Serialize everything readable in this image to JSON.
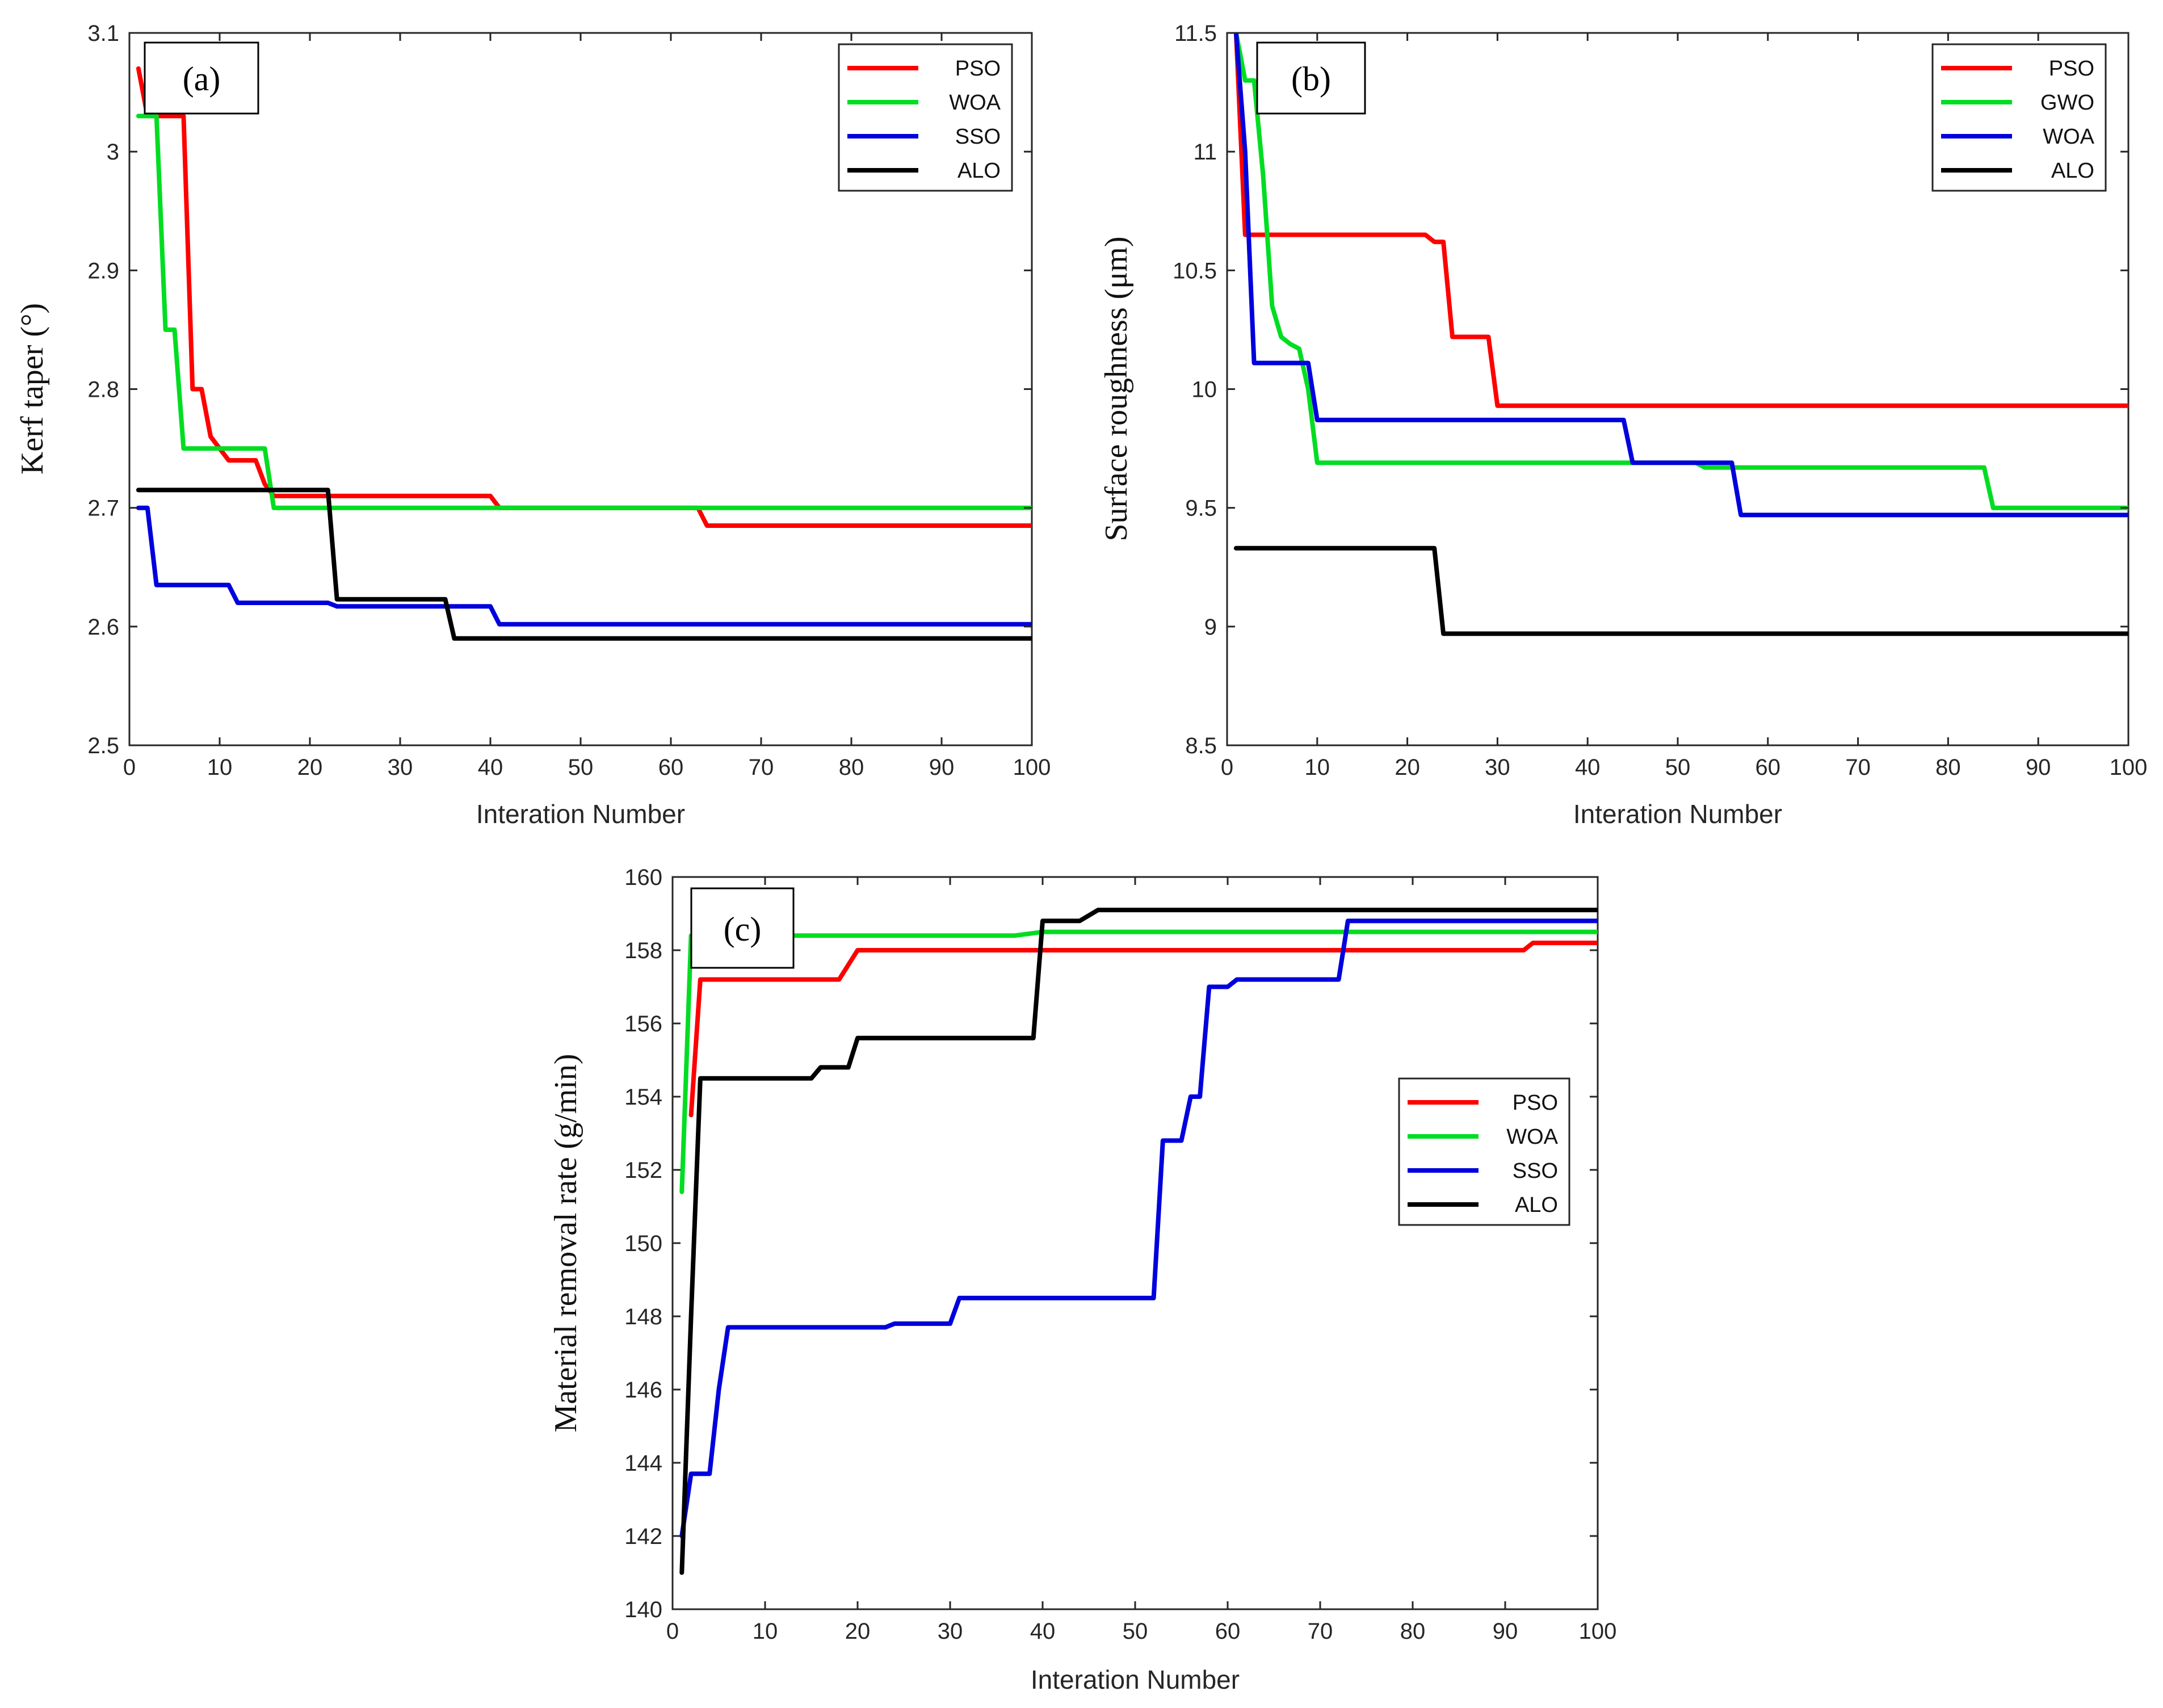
{
  "chart_data": [
    {
      "type": "line",
      "panel_label": "(a)",
      "xlabel": "Interation Number",
      "ylabel": "Kerf taper  (°)",
      "xlim": [
        0,
        100
      ],
      "ylim": [
        2.5,
        3.1
      ],
      "xticks": [
        0,
        10,
        20,
        30,
        40,
        50,
        60,
        70,
        80,
        90,
        100
      ],
      "yticks": [
        2.5,
        2.6,
        2.7,
        2.8,
        2.9,
        3.0,
        3.1
      ],
      "ytick_labels": [
        "2.5",
        "2.6",
        "2.7",
        "2.8",
        "2.9",
        "3",
        "3.1"
      ],
      "grid": false,
      "legend_position": "top-right",
      "series": [
        {
          "name": "PSO",
          "color": "#ff0000",
          "points": [
            [
              1,
              3.07
            ],
            [
              2,
              3.03
            ],
            [
              6,
              3.03
            ],
            [
              7,
              2.8
            ],
            [
              8,
              2.8
            ],
            [
              9,
              2.76
            ],
            [
              10,
              2.75
            ],
            [
              11,
              2.74
            ],
            [
              14,
              2.74
            ],
            [
              15,
              2.72
            ],
            [
              16,
              2.71
            ],
            [
              40,
              2.71
            ],
            [
              41,
              2.7
            ],
            [
              63,
              2.7
            ],
            [
              64,
              2.685
            ],
            [
              100,
              2.685
            ]
          ]
        },
        {
          "name": "WOA",
          "color": "#00dd22",
          "points": [
            [
              1,
              3.03
            ],
            [
              3,
              3.03
            ],
            [
              4,
              2.85
            ],
            [
              5,
              2.85
            ],
            [
              6,
              2.75
            ],
            [
              15,
              2.75
            ],
            [
              16,
              2.7
            ],
            [
              100,
              2.7
            ]
          ]
        },
        {
          "name": "SSO",
          "color": "#0000dd",
          "points": [
            [
              1,
              2.7
            ],
            [
              2,
              2.7
            ],
            [
              3,
              2.635
            ],
            [
              11,
              2.635
            ],
            [
              12,
              2.62
            ],
            [
              22,
              2.62
            ],
            [
              23,
              2.617
            ],
            [
              40,
              2.617
            ],
            [
              41,
              2.602
            ],
            [
              100,
              2.602
            ]
          ]
        },
        {
          "name": "ALO",
          "color": "#000000",
          "points": [
            [
              1,
              2.715
            ],
            [
              22,
              2.715
            ],
            [
              23,
              2.623
            ],
            [
              35,
              2.623
            ],
            [
              36,
              2.59
            ],
            [
              100,
              2.59
            ]
          ]
        }
      ]
    },
    {
      "type": "line",
      "panel_label": "(b)",
      "xlabel": "Interation Number",
      "ylabel": "Surface roughness (μm)",
      "xlim": [
        0,
        100
      ],
      "ylim": [
        8.5,
        11.5
      ],
      "xticks": [
        0,
        10,
        20,
        30,
        40,
        50,
        60,
        70,
        80,
        90,
        100
      ],
      "yticks": [
        8.5,
        9.0,
        9.5,
        10.0,
        10.5,
        11.0,
        11.5
      ],
      "ytick_labels": [
        "8.5",
        "9",
        "9.5",
        "10",
        "10.5",
        "11",
        "11.5"
      ],
      "grid": false,
      "legend_position": "top-right",
      "series": [
        {
          "name": "PSO",
          "color": "#ff0000",
          "points": [
            [
              1,
              11.5
            ],
            [
              2,
              10.65
            ],
            [
              22,
              10.65
            ],
            [
              23,
              10.62
            ],
            [
              24,
              10.62
            ],
            [
              25,
              10.22
            ],
            [
              29,
              10.22
            ],
            [
              30,
              9.93
            ],
            [
              100,
              9.93
            ]
          ]
        },
        {
          "name": "GWO",
          "color": "#00dd22",
          "points": [
            [
              1,
              11.5
            ],
            [
              2,
              11.3
            ],
            [
              3,
              11.3
            ],
            [
              4,
              10.9
            ],
            [
              5,
              10.35
            ],
            [
              6,
              10.22
            ],
            [
              7,
              10.19
            ],
            [
              8,
              10.17
            ],
            [
              9,
              10.0
            ],
            [
              10,
              9.69
            ],
            [
              52,
              9.69
            ],
            [
              53,
              9.67
            ],
            [
              84,
              9.67
            ],
            [
              85,
              9.5
            ],
            [
              100,
              9.5
            ]
          ]
        },
        {
          "name": "WOA",
          "color": "#0000dd",
          "points": [
            [
              1,
              11.5
            ],
            [
              2,
              11.0
            ],
            [
              3,
              10.11
            ],
            [
              9,
              10.11
            ],
            [
              10,
              9.87
            ],
            [
              44,
              9.87
            ],
            [
              45,
              9.69
            ],
            [
              56,
              9.69
            ],
            [
              57,
              9.47
            ],
            [
              100,
              9.47
            ]
          ]
        },
        {
          "name": "ALO",
          "color": "#000000",
          "points": [
            [
              1,
              9.33
            ],
            [
              23,
              9.33
            ],
            [
              24,
              8.97
            ],
            [
              100,
              8.97
            ]
          ]
        }
      ]
    },
    {
      "type": "line",
      "panel_label": "(c)",
      "xlabel": "Interation Number",
      "ylabel": "Material removal rate (g/min)",
      "xlim": [
        0,
        100
      ],
      "ylim": [
        140,
        160
      ],
      "xticks": [
        0,
        10,
        20,
        30,
        40,
        50,
        60,
        70,
        80,
        90,
        100
      ],
      "yticks": [
        140,
        142,
        144,
        146,
        148,
        150,
        152,
        154,
        156,
        158,
        160
      ],
      "ytick_labels": [
        "140",
        "142",
        "144",
        "146",
        "148",
        "150",
        "152",
        "154",
        "156",
        "158",
        "160"
      ],
      "grid": false,
      "legend_position": "middle-right",
      "series": [
        {
          "name": "PSO",
          "color": "#ff0000",
          "points": [
            [
              2,
              153.5
            ],
            [
              3,
              157.2
            ],
            [
              18,
              157.2
            ],
            [
              20,
              158.0
            ],
            [
              92,
              158.0
            ],
            [
              93,
              158.2
            ],
            [
              100,
              158.2
            ]
          ]
        },
        {
          "name": "WOA",
          "color": "#00dd22",
          "points": [
            [
              1,
              151.4
            ],
            [
              2,
              158.4
            ],
            [
              37,
              158.4
            ],
            [
              40,
              158.5
            ],
            [
              100,
              158.5
            ]
          ]
        },
        {
          "name": "SSO",
          "color": "#0000dd",
          "points": [
            [
              1,
              142.0
            ],
            [
              2,
              143.7
            ],
            [
              4,
              143.7
            ],
            [
              5,
              146.0
            ],
            [
              6,
              147.7
            ],
            [
              10,
              147.7
            ],
            [
              23,
              147.7
            ],
            [
              24,
              147.8
            ],
            [
              30,
              147.8
            ],
            [
              31,
              148.5
            ],
            [
              52,
              148.5
            ],
            [
              53,
              152.8
            ],
            [
              55,
              152.8
            ],
            [
              56,
              154.0
            ],
            [
              57,
              154.0
            ],
            [
              58,
              157.0
            ],
            [
              60,
              157.0
            ],
            [
              61,
              157.2
            ],
            [
              72,
              157.2
            ],
            [
              73,
              158.8
            ],
            [
              100,
              158.8
            ]
          ]
        },
        {
          "name": "ALO",
          "color": "#000000",
          "points": [
            [
              1,
              141.0
            ],
            [
              2,
              148.0
            ],
            [
              3,
              154.5
            ],
            [
              15,
              154.5
            ],
            [
              16,
              154.8
            ],
            [
              19,
              154.8
            ],
            [
              20,
              155.6
            ],
            [
              39,
              155.6
            ],
            [
              40,
              158.8
            ],
            [
              44,
              158.8
            ],
            [
              46,
              159.1
            ],
            [
              100,
              159.1
            ]
          ]
        }
      ]
    }
  ]
}
